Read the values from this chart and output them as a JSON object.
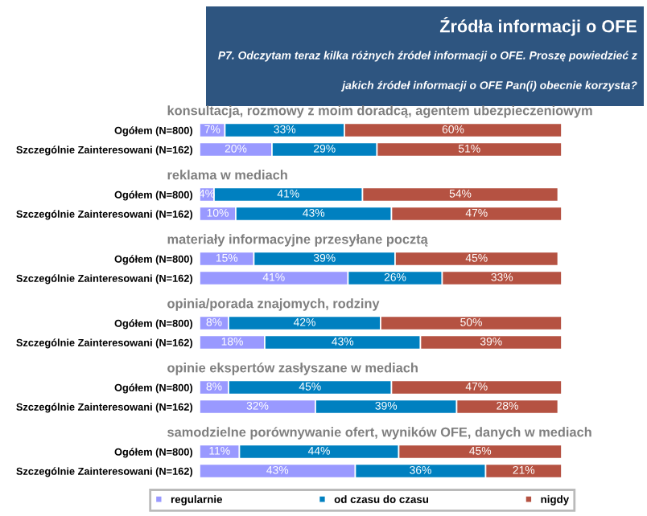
{
  "chart_data": [
    {
      "type": "other",
      "title": "Źródła informacji o OFE",
      "subtitle": "P7. Odczytam teraz kilka różnych źródeł informacji o OFE. Proszę powiedzieć z jakich źródeł informacji o OFE Pan(i) obecnie korzysta?"
    },
    {
      "type": "bar",
      "title": "konsultacja, rozmowy z moim doradcą, agentem ubezpieczeniowym",
      "categories": [
        "Ogółem (N=800)",
        "Szczególnie Zainteresowani (N=162)"
      ],
      "orientation": "horizontal",
      "stacked": true,
      "xlim": [
        0,
        100
      ],
      "tick_labels": "y",
      "legend": "bottom",
      "series": [
        {
          "name": "regularnie",
          "color": "#9999ff",
          "values": [
            7,
            20
          ],
          "value_labels": [
            "7%",
            "20%"
          ]
        },
        {
          "name": "od czasu do czasu",
          "color": "#0080c0",
          "values": [
            33,
            29
          ],
          "value_labels": [
            "33%",
            "29%"
          ]
        },
        {
          "name": "nigdy",
          "color": "#b55242",
          "values": [
            60,
            51
          ],
          "value_labels": [
            "60%",
            "51%"
          ]
        }
      ]
    },
    {
      "type": "bar",
      "title": "reklama w mediach",
      "categories": [
        "Ogółem (N=800)",
        "Szczególnie Zainteresowani (N=162)"
      ],
      "orientation": "horizontal",
      "stacked": true,
      "xlim": [
        0,
        100
      ],
      "tick_labels": "y",
      "series": [
        {
          "color": "#9999ff",
          "values": [
            4,
            10
          ],
          "value_labels": [
            "4%",
            "10%"
          ]
        },
        {
          "color": "#0080c0",
          "values": [
            41,
            43
          ],
          "value_labels": [
            "41%",
            "43%"
          ]
        },
        {
          "color": "#b55242",
          "values": [
            54,
            47
          ],
          "value_labels": [
            "54%",
            "47%"
          ]
        }
      ]
    },
    {
      "type": "bar",
      "title": "materiały informacyjne przesyłane pocztą",
      "categories": [
        "Ogółem (N=800)",
        "Szczególnie Zainteresowani (N=162)"
      ],
      "orientation": "horizontal",
      "stacked": true,
      "xlim": [
        0,
        100
      ],
      "tick_labels": "y",
      "series": [
        {
          "color": "#9999ff",
          "values": [
            15,
            41
          ],
          "value_labels": [
            "15%",
            "41%"
          ]
        },
        {
          "color": "#0080c0",
          "values": [
            39,
            26
          ],
          "value_labels": [
            "39%",
            "26%"
          ]
        },
        {
          "color": "#b55242",
          "values": [
            45,
            33
          ],
          "value_labels": [
            "45%",
            "33%"
          ]
        }
      ]
    },
    {
      "type": "bar",
      "title": "opinia/porada znajomych, rodziny",
      "categories": [
        "Ogółem (N=800)",
        "Szczególnie Zainteresowani (N=162)"
      ],
      "orientation": "horizontal",
      "stacked": true,
      "xlim": [
        0,
        100
      ],
      "tick_labels": "y",
      "series": [
        {
          "color": "#9999ff",
          "values": [
            8,
            18
          ],
          "value_labels": [
            "8%",
            "18%"
          ]
        },
        {
          "color": "#0080c0",
          "values": [
            42,
            43
          ],
          "value_labels": [
            "42%",
            "43%"
          ]
        },
        {
          "color": "#b55242",
          "values": [
            50,
            39
          ],
          "value_labels": [
            "50%",
            "39%"
          ]
        }
      ]
    },
    {
      "type": "bar",
      "title": "opinie ekspertów zasłyszane w mediach",
      "categories": [
        "Ogółem (N=800)",
        "Szczególnie Zainteresowani (N=162)"
      ],
      "orientation": "horizontal",
      "stacked": true,
      "xlim": [
        0,
        100
      ],
      "tick_labels": "y",
      "series": [
        {
          "color": "#9999ff",
          "values": [
            8,
            32
          ],
          "value_labels": [
            "8%",
            "32%"
          ]
        },
        {
          "color": "#0080c0",
          "values": [
            45,
            39
          ],
          "value_labels": [
            "45%",
            "39%"
          ]
        },
        {
          "color": "#b55242",
          "values": [
            47,
            28
          ],
          "value_labels": [
            "47%",
            "28%"
          ]
        }
      ]
    },
    {
      "type": "bar",
      "title": "samodzielne porównywanie ofert, wyników OFE, danych w mediach",
      "categories": [
        "Ogółem (N=800)",
        "Szczególnie Zainteresowani (N=162)"
      ],
      "orientation": "horizontal",
      "stacked": true,
      "xlim": [
        0,
        100
      ],
      "tick_labels": "y",
      "series": [
        {
          "color": "#9999ff",
          "values": [
            11,
            43
          ],
          "value_labels": [
            "11%",
            "43%"
          ]
        },
        {
          "color": "#0080c0",
          "values": [
            44,
            36
          ],
          "value_labels": [
            "44%",
            "36%"
          ]
        },
        {
          "color": "#b55242",
          "values": [
            45,
            21
          ],
          "value_labels": [
            "45%",
            "21%"
          ]
        }
      ]
    }
  ]
}
